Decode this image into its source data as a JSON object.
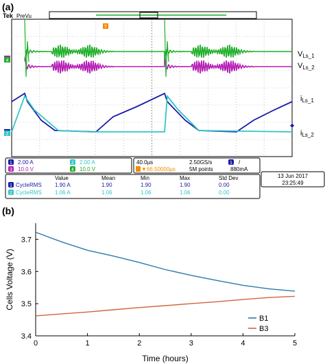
{
  "panel_a": {
    "label": "(a)",
    "brand": "Tek",
    "mode": "PreVu",
    "trigger_marker": "T",
    "right_labels": {
      "v1": "V",
      "v1_sub": "Ls_1",
      "v2": "V",
      "v2_sub": "Ls_2",
      "i1": "i",
      "i1_sub": "Ls_1",
      "i2": "i",
      "i2_sub": "Ls_2"
    },
    "channel_markers": [
      "3",
      "4",
      "1",
      "2"
    ],
    "channel_settings": [
      {
        "num": "1",
        "value": "2.00 A"
      },
      {
        "num": "2",
        "value": "2.00 A"
      },
      {
        "num": "3",
        "value": "10.0 V"
      },
      {
        "num": "4",
        "value": "10.0 V"
      }
    ],
    "timebase": {
      "scale": "40.0µs",
      "rate": "2.50GS/s",
      "trig_ch": "1",
      "trig_slope": "/",
      "pos": "▼66.50000µs",
      "points": "5M points",
      "level": "880mA"
    },
    "date": "13 Jun  2017",
    "time": "23:25:49",
    "measure_headers": [
      "Value",
      "Mean",
      "Min",
      "Max",
      "Std Dev"
    ],
    "measurements": [
      {
        "ch": "1",
        "name": "CycleRMS",
        "value": "1.90 A",
        "mean": "1.90",
        "min": "1.90",
        "max": "1.90",
        "std": "0.00"
      },
      {
        "ch": "2",
        "name": "CycleRMS",
        "value": "1.06 A",
        "mean": "1.06",
        "min": "1.06",
        "max": "1.06",
        "std": "0.00"
      }
    ],
    "colors": {
      "ch1": "#1a1aa6",
      "ch2": "#2ec7c7",
      "ch3": "#b41eb4",
      "ch4": "#1fae2a",
      "trigger": "#f08c00"
    }
  },
  "panel_b": {
    "label": "(b)"
  },
  "chart_data": {
    "type": "line",
    "title": "",
    "xlabel": "Time (hours)",
    "ylabel": "Cells Voltage (V)",
    "xlim": [
      0,
      5
    ],
    "ylim": [
      3.4,
      3.75
    ],
    "xticks": [
      "0",
      "1",
      "2",
      "3",
      "4",
      "5"
    ],
    "yticks": [
      "3.4",
      "3.5",
      "3.6",
      "3.7"
    ],
    "grid": false,
    "legend_position": "bottom-right",
    "series": [
      {
        "name": "B1",
        "color": "#2a7aad",
        "x": [
          0,
          0.5,
          1,
          1.5,
          2,
          2.5,
          3,
          3.5,
          4,
          4.5,
          5
        ],
        "y": [
          3.722,
          3.692,
          3.666,
          3.648,
          3.628,
          3.606,
          3.588,
          3.572,
          3.557,
          3.546,
          3.539
        ]
      },
      {
        "name": "B3",
        "color": "#d2643a",
        "x": [
          0,
          0.5,
          1,
          1.5,
          2,
          2.5,
          3,
          3.5,
          4,
          4.5,
          5
        ],
        "y": [
          3.462,
          3.468,
          3.474,
          3.481,
          3.488,
          3.494,
          3.5,
          3.506,
          3.513,
          3.519,
          3.523
        ]
      }
    ]
  }
}
